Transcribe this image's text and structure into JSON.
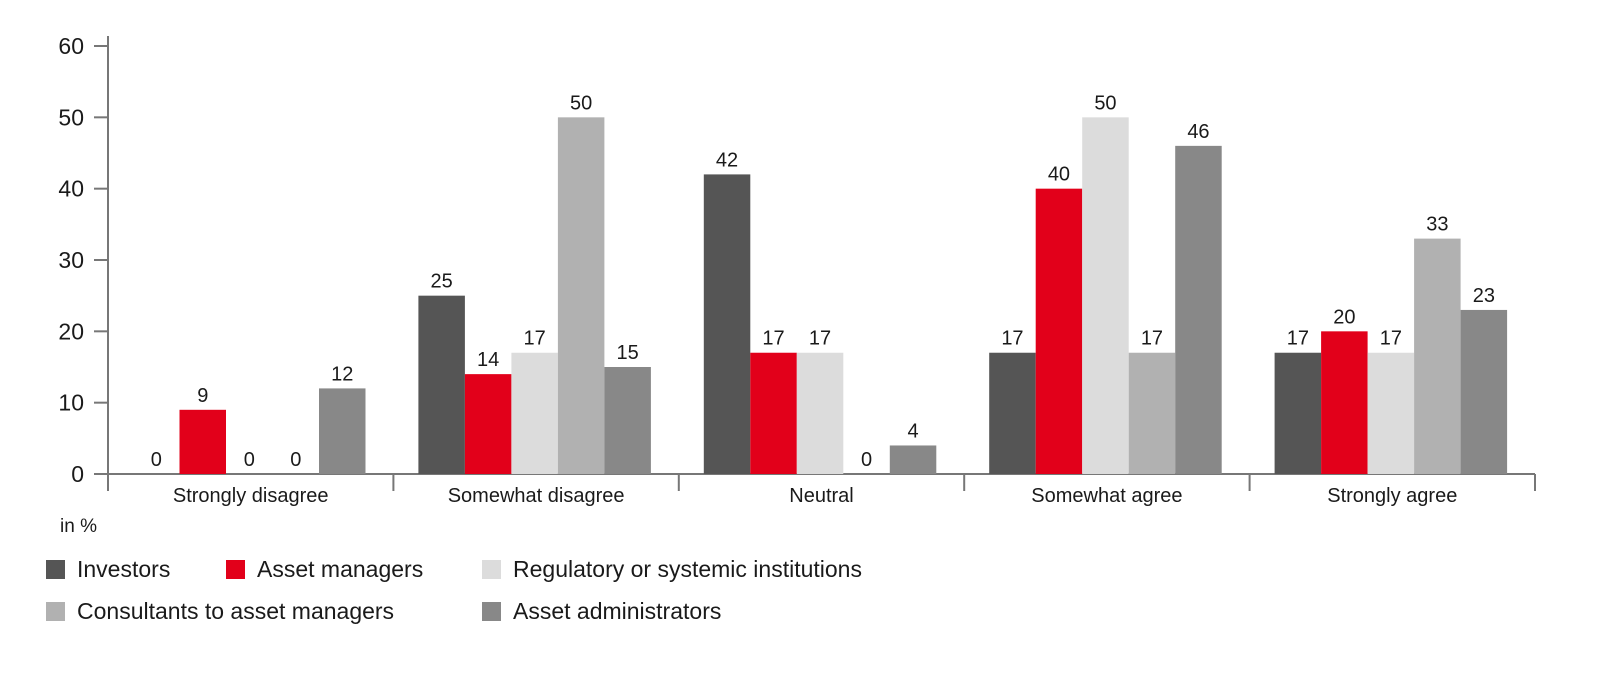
{
  "chart_data": {
    "type": "bar",
    "categories": [
      "Strongly disagree",
      "Somewhat disagree",
      "Neutral",
      "Somewhat agree",
      "Strongly agree"
    ],
    "series": [
      {
        "name": "Investors",
        "color": "#555555",
        "values": [
          0,
          25,
          42,
          17,
          17
        ]
      },
      {
        "name": "Asset managers",
        "color": "#e2001a",
        "values": [
          9,
          14,
          17,
          40,
          20
        ]
      },
      {
        "name": "Regulatory or systemic institutions",
        "color": "#dcdcdc",
        "values": [
          0,
          17,
          17,
          50,
          17
        ]
      },
      {
        "name": "Consultants to asset managers",
        "color": "#b1b1b1",
        "values": [
          0,
          50,
          0,
          17,
          33
        ]
      },
      {
        "name": "Asset administrators",
        "color": "#888888",
        "values": [
          12,
          15,
          4,
          46,
          23
        ]
      }
    ],
    "y_ticks": [
      "0",
      "10",
      "20",
      "30",
      "40",
      "50",
      "60"
    ],
    "ylim": [
      0,
      60
    ],
    "unit_label": "in %",
    "legend_position": "bottom-left",
    "grid": false
  }
}
